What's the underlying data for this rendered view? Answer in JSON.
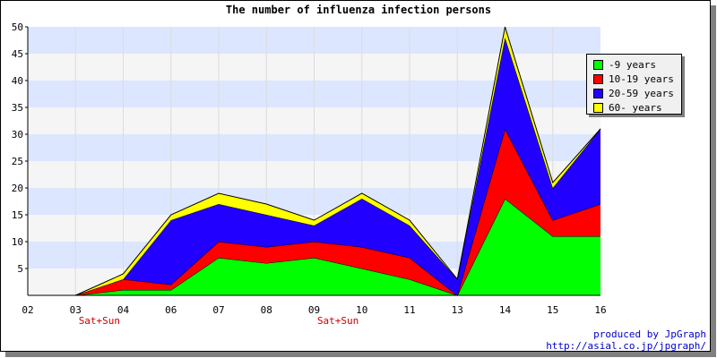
{
  "chart_data": {
    "type": "area",
    "stacked": true,
    "title": "The number of influenza infection persons",
    "categories": [
      "02",
      "03",
      "04",
      "06",
      "07",
      "08",
      "09",
      "10",
      "11",
      "13",
      "14",
      "15",
      "16"
    ],
    "category_notes": [
      {
        "category": "03",
        "text": "Sat+Sun"
      },
      {
        "category": "09",
        "text": "Sat+Sun"
      }
    ],
    "series": [
      {
        "name": "-9 years",
        "color": "#00ff00",
        "values": [
          null,
          0,
          1,
          1,
          7,
          6,
          7,
          5,
          3,
          0,
          18,
          11,
          11
        ]
      },
      {
        "name": "10-19 years",
        "color": "#ff0000",
        "values": [
          null,
          0,
          2,
          1,
          3,
          3,
          3,
          4,
          4,
          0,
          13,
          3,
          6
        ]
      },
      {
        "name": "20-59 years",
        "color": "#2200ff",
        "values": [
          null,
          0,
          0,
          12,
          7,
          6,
          3,
          9,
          6,
          3,
          17,
          6,
          14
        ]
      },
      {
        "name": "60- years",
        "color": "#ffff00",
        "values": [
          null,
          0,
          1,
          1,
          2,
          2,
          1,
          1,
          1,
          0,
          2,
          1,
          0
        ]
      }
    ],
    "ylim": [
      0,
      50
    ],
    "yticks": [
      5,
      10,
      15,
      20,
      25,
      30,
      35,
      40,
      45,
      50
    ],
    "grid": true,
    "band_colors": [
      "#f5f5f5",
      "#dde6ff"
    ],
    "legend_position": "top-right"
  },
  "footer": {
    "credit_line1": "produced by JpGraph",
    "credit_line2": "http://asial.co.jp/jpgraph/"
  }
}
